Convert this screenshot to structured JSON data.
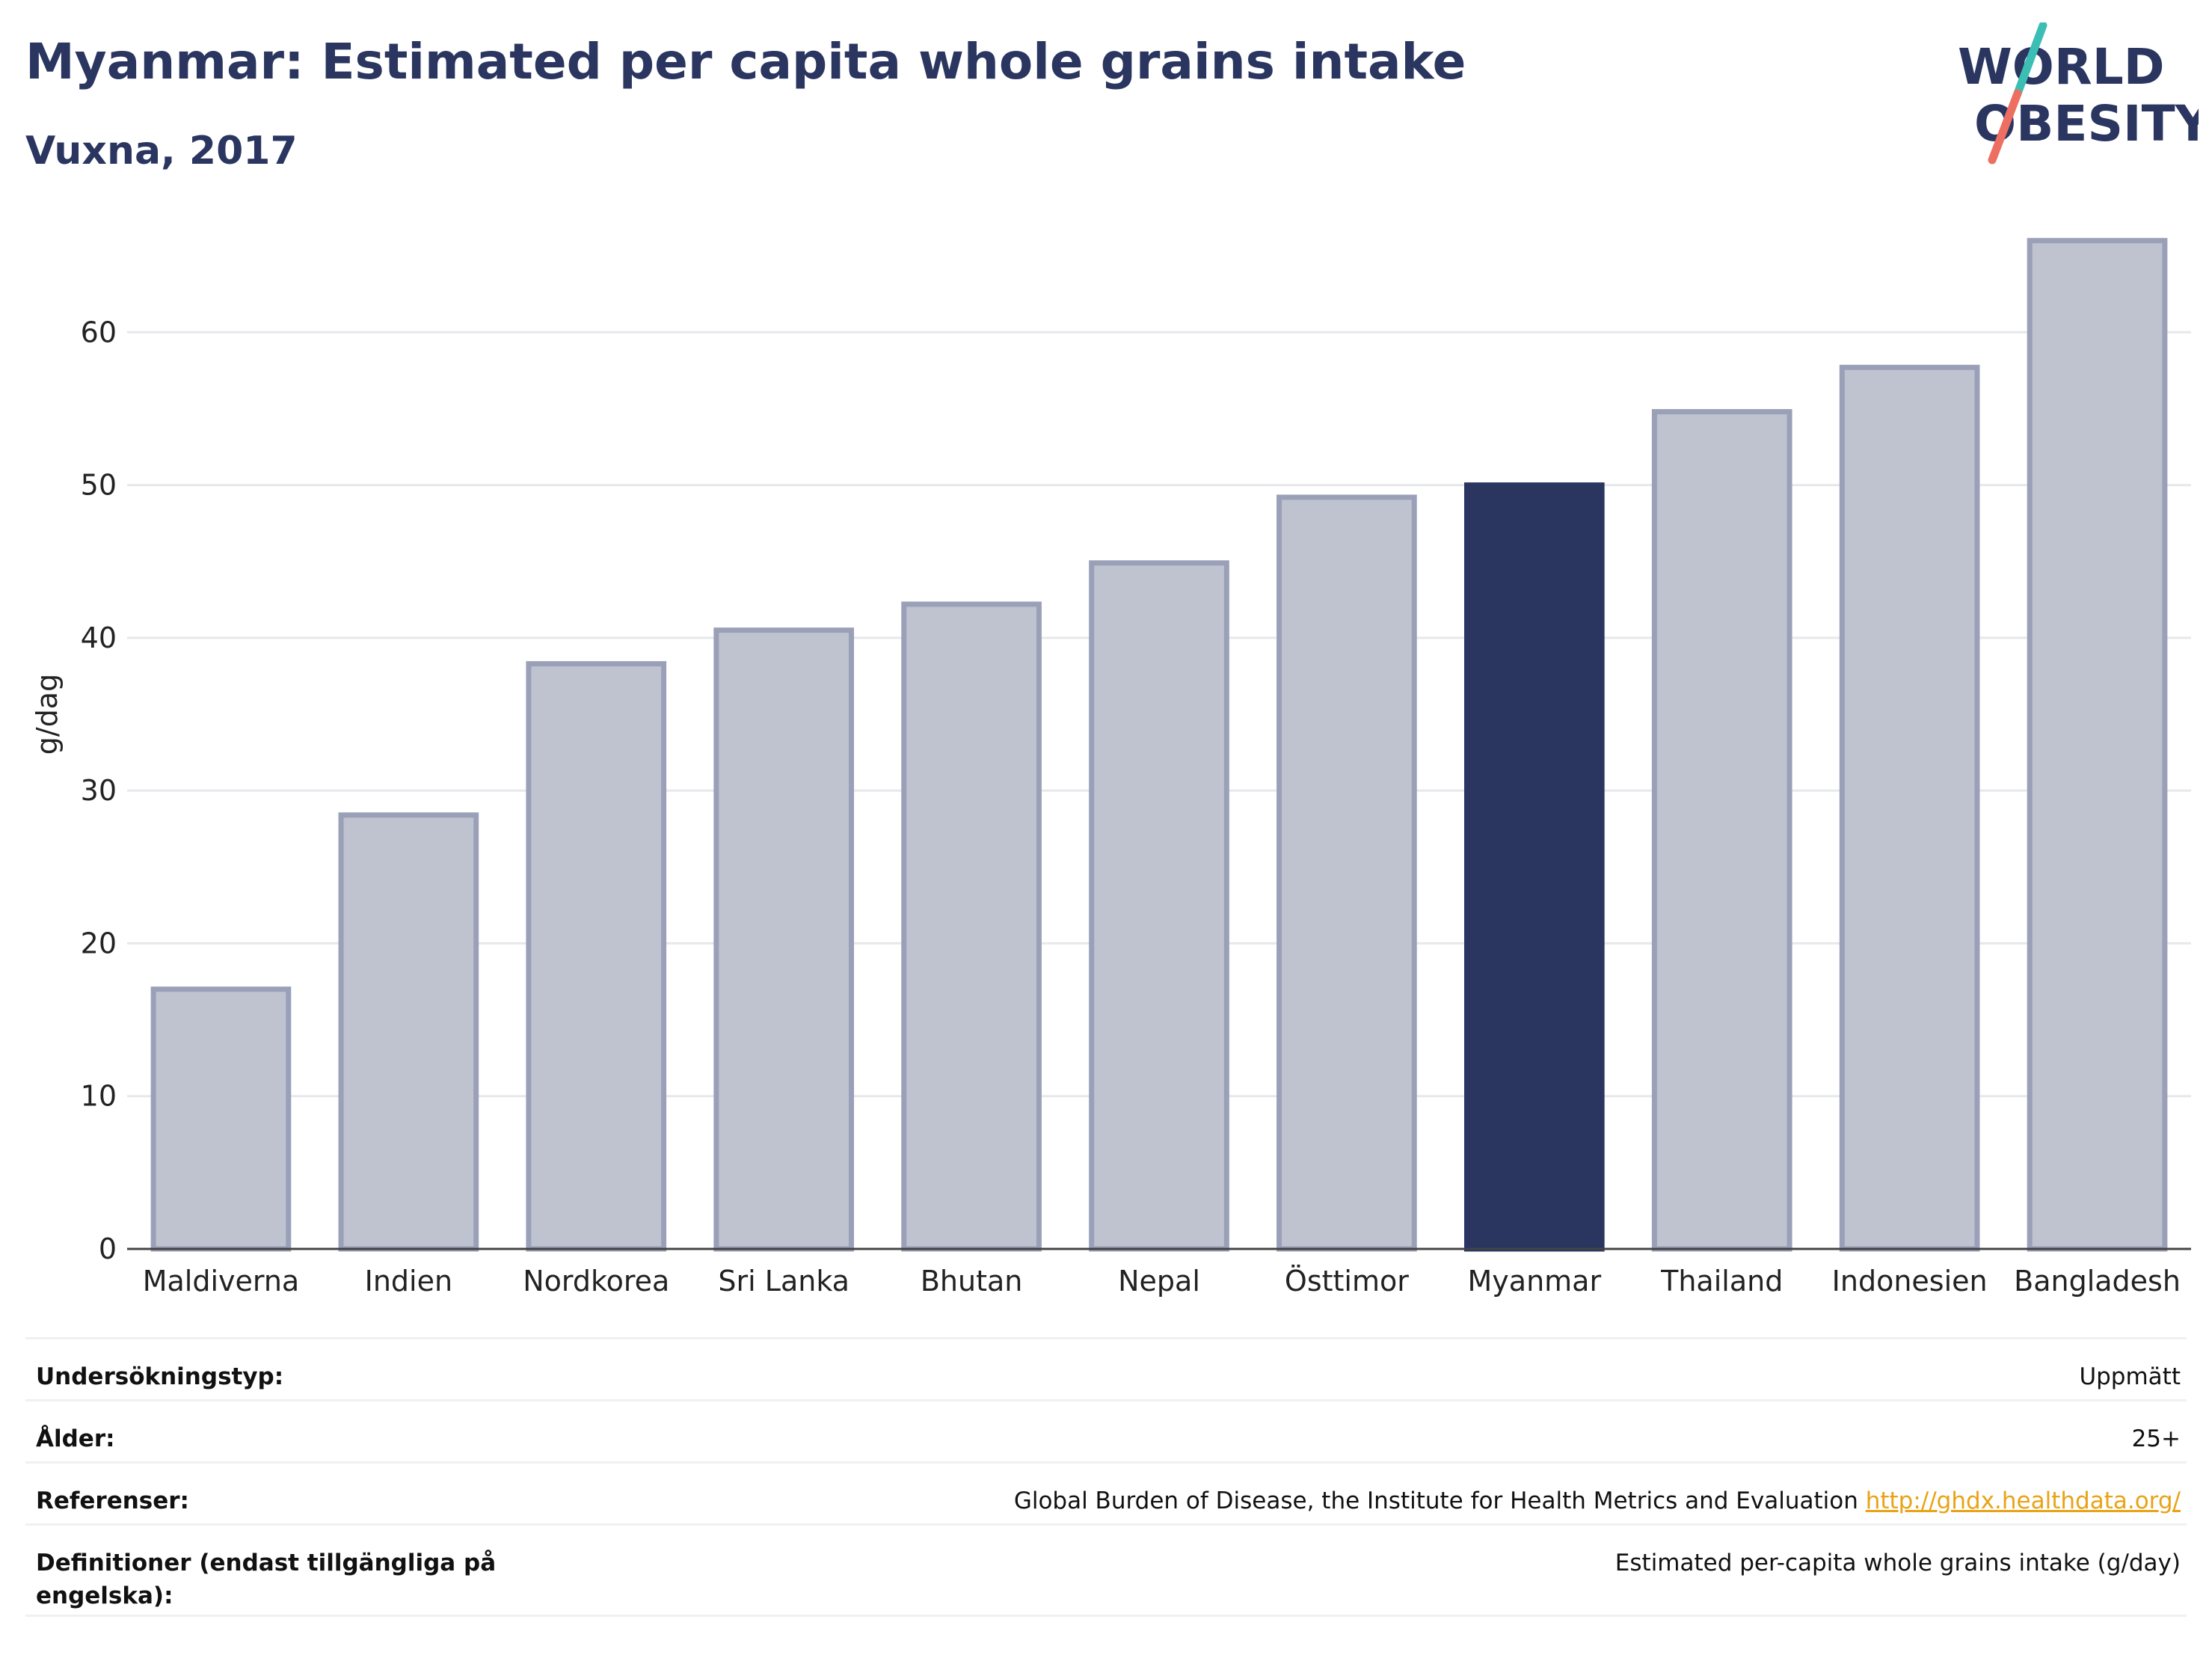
{
  "header": {
    "title": "Myanmar: Estimated per capita whole grains intake",
    "subtitle": "Vuxna, 2017"
  },
  "logo": {
    "line1": "WORLD",
    "line2": "OBESITY",
    "slash_colors": [
      "#3bbfb5",
      "#ec6f61"
    ]
  },
  "colors": {
    "bar_fill": "#bfc3d0",
    "bar_stroke": "#9aa0b8",
    "highlight": "#2a3560",
    "grid": "#e6e8ec",
    "axis": "#444444"
  },
  "chart_data": {
    "type": "bar",
    "categories": [
      "Maldiverna",
      "Indien",
      "Nordkorea",
      "Sri Lanka",
      "Bhutan",
      "Nepal",
      "Östtimor",
      "Myanmar",
      "Thailand",
      "Indonesien",
      "Bangladesh"
    ],
    "values": [
      17.0,
      28.4,
      38.3,
      40.5,
      42.2,
      44.9,
      49.2,
      50.0,
      54.8,
      57.7,
      66.0
    ],
    "highlight": "Myanmar",
    "ylabel": "g/dag",
    "xlabel": "",
    "ylim": [
      0,
      70
    ],
    "yticks": [
      0,
      10,
      20,
      30,
      40,
      50,
      60
    ],
    "grid": true
  },
  "meta": {
    "rows": [
      {
        "label": "Undersökningstyp:",
        "value": "Uppmätt"
      },
      {
        "label": "Ålder:",
        "value": "25+"
      },
      {
        "label": "Referenser:",
        "value": "Global Burden of Disease, the Institute for Health Metrics and Evaluation ",
        "link": "http://ghdx.healthdata.org/"
      },
      {
        "label": "Definitioner (endast tillgängliga på engelska):",
        "value": "Estimated per-capita whole grains intake (g/day)"
      }
    ]
  }
}
